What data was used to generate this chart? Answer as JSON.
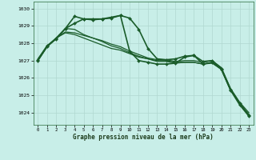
{
  "title": "Graphe pression niveau de la mer (hPa)",
  "background_color": "#c8eee8",
  "grid_color": "#b0d8d0",
  "line_color": "#1a5c2a",
  "xlim": [
    -0.5,
    23.5
  ],
  "ylim": [
    1023.3,
    1030.4
  ],
  "yticks": [
    1024,
    1025,
    1026,
    1027,
    1028,
    1029,
    1030
  ],
  "xticks": [
    0,
    1,
    2,
    3,
    4,
    5,
    6,
    7,
    8,
    9,
    10,
    11,
    12,
    13,
    14,
    15,
    16,
    17,
    18,
    19,
    20,
    21,
    22,
    23
  ],
  "series": [
    {
      "x": [
        0,
        1,
        2,
        3,
        4,
        5,
        6,
        7,
        8,
        9,
        10,
        11,
        12,
        13,
        14,
        15,
        16,
        17,
        18,
        19,
        20,
        21,
        22,
        23
      ],
      "y": [
        1027.0,
        1027.8,
        1028.3,
        1028.6,
        1028.5,
        1028.3,
        1028.1,
        1027.9,
        1027.7,
        1027.6,
        1027.4,
        1027.2,
        1027.1,
        1027.0,
        1027.0,
        1026.9,
        1026.9,
        1026.9,
        1026.8,
        1026.9,
        1026.5,
        1025.3,
        1024.5,
        1023.9
      ],
      "marker": null,
      "linewidth": 0.9
    },
    {
      "x": [
        0,
        1,
        2,
        3,
        4,
        5,
        6,
        7,
        8,
        9,
        10,
        11,
        12,
        13,
        14,
        15,
        16,
        17,
        18,
        19,
        20,
        21,
        22,
        23
      ],
      "y": [
        1027.1,
        1027.85,
        1028.3,
        1028.65,
        1028.6,
        1028.45,
        1028.3,
        1028.15,
        1027.95,
        1027.8,
        1027.55,
        1027.35,
        1027.15,
        1027.05,
        1027.05,
        1026.95,
        1027.0,
        1027.0,
        1026.9,
        1027.0,
        1026.6,
        1025.4,
        1024.6,
        1024.0
      ],
      "marker": null,
      "linewidth": 0.9
    },
    {
      "x": [
        0,
        1,
        2,
        3,
        4,
        5,
        6,
        7,
        8,
        9,
        10,
        11,
        12,
        13,
        14,
        15,
        16,
        17,
        18,
        19,
        20,
        21,
        22,
        23
      ],
      "y": [
        1027.0,
        1027.8,
        1028.25,
        1028.85,
        1028.8,
        1028.5,
        1028.3,
        1028.1,
        1027.85,
        1027.7,
        1027.45,
        1027.25,
        1027.1,
        1026.95,
        1026.95,
        1026.85,
        1026.9,
        1026.9,
        1026.8,
        1026.85,
        1026.5,
        1025.3,
        1024.55,
        1023.85
      ],
      "marker": null,
      "linewidth": 0.9
    },
    {
      "x": [
        0,
        1,
        2,
        3,
        4,
        5,
        6,
        7,
        8,
        9,
        10,
        11,
        12,
        13,
        14,
        15,
        16,
        17,
        18,
        19,
        20,
        21,
        22,
        23
      ],
      "y": [
        1027.0,
        1027.8,
        1028.3,
        1028.85,
        1029.55,
        1029.4,
        1029.35,
        1029.4,
        1029.45,
        1029.6,
        1029.45,
        1028.8,
        1027.7,
        1027.1,
        1027.05,
        1027.1,
        1027.25,
        1027.3,
        1026.95,
        1027.0,
        1026.55,
        1025.35,
        1024.55,
        1023.85
      ],
      "marker": "D",
      "markersize": 2.0,
      "linewidth": 1.2
    },
    {
      "x": [
        0,
        1,
        2,
        3,
        4,
        5,
        6,
        7,
        8,
        9,
        10,
        11,
        12,
        13,
        14,
        15,
        16,
        17,
        18,
        19,
        20,
        21,
        22,
        23
      ],
      "y": [
        1027.05,
        1027.85,
        1028.25,
        1028.85,
        1029.15,
        1029.4,
        1029.4,
        1029.4,
        1029.5,
        1029.6,
        1027.55,
        1027.0,
        1026.9,
        1026.8,
        1026.8,
        1026.85,
        1027.2,
        1027.3,
        1026.8,
        1026.9,
        1026.5,
        1025.3,
        1024.45,
        1023.8
      ],
      "marker": "D",
      "markersize": 2.0,
      "linewidth": 1.2
    }
  ]
}
